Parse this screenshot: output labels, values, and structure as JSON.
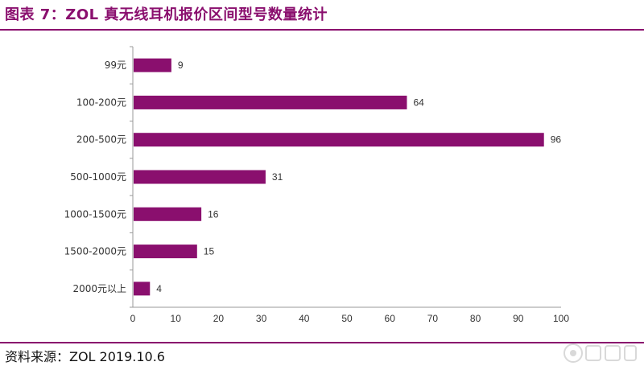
{
  "header": {
    "title": "图表 7：ZOL 真无线耳机报价区间型号数量统计"
  },
  "footer": {
    "source": "资料来源：ZOL 2019.10.6"
  },
  "chart_data": {
    "type": "bar",
    "orientation": "horizontal",
    "categories": [
      "99元",
      "100-200元",
      "200-500元",
      "500-1000元",
      "1000-1500元",
      "1500-2000元",
      "2000元以上"
    ],
    "values": [
      9,
      64,
      96,
      31,
      16,
      15,
      4
    ],
    "xlim": [
      0,
      100
    ],
    "xticks": [
      0,
      10,
      20,
      30,
      40,
      50,
      60,
      70,
      80,
      90,
      100
    ],
    "bar_color": "#8a0f6e",
    "grid": false,
    "legend": "none"
  }
}
